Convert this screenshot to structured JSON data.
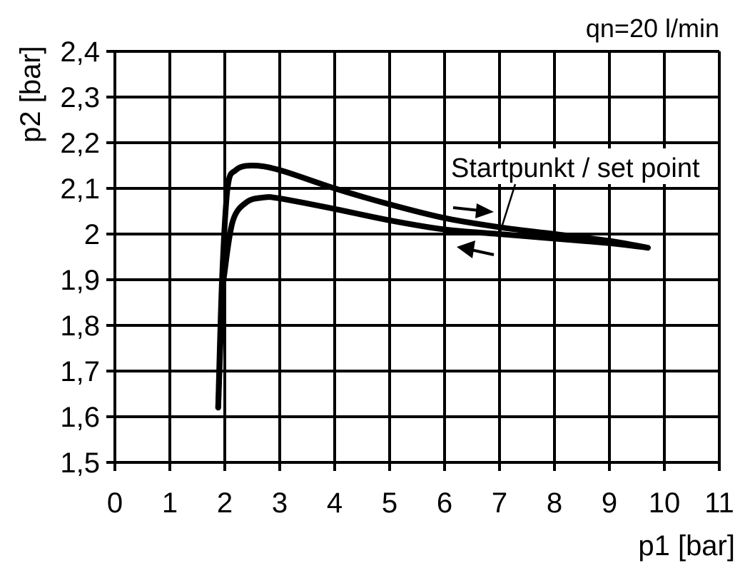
{
  "chart_data": {
    "type": "line",
    "title": "",
    "annotation_top": "qn=20 l/min",
    "xlabel": "p1 [bar]",
    "ylabel": "p2 [bar]",
    "xlim": [
      0,
      11
    ],
    "ylim": [
      1.5,
      2.4
    ],
    "grid": true,
    "x_ticks": [
      "0",
      "1",
      "2",
      "3",
      "4",
      "5",
      "6",
      "7",
      "8",
      "9",
      "10",
      "11"
    ],
    "y_ticks": [
      "1,5",
      "1,6",
      "1,7",
      "1,8",
      "1,9",
      "2",
      "2,1",
      "2,2",
      "2,3",
      "2,4"
    ],
    "set_point_label": "Startpunkt / set point",
    "set_point": {
      "x": 7,
      "y": 2.0
    },
    "series": [
      {
        "x": [
          1.88,
          1.95,
          2.05,
          2.2,
          2.5,
          3,
          4,
          5,
          6,
          7,
          8,
          9,
          9.7
        ],
        "y": [
          1.62,
          1.9,
          2.1,
          2.14,
          2.15,
          2.14,
          2.1,
          2.065,
          2.035,
          2.015,
          2.0,
          1.985,
          1.97
        ]
      },
      {
        "x": [
          1.88,
          1.95,
          2.0,
          2.15,
          2.4,
          2.7,
          3,
          4,
          5,
          6,
          7,
          8,
          9,
          9.7
        ],
        "y": [
          1.62,
          1.85,
          1.92,
          2.03,
          2.07,
          2.08,
          2.078,
          2.055,
          2.03,
          2.01,
          2.0,
          1.99,
          1.98,
          1.97
        ]
      }
    ],
    "color": "#000000"
  }
}
